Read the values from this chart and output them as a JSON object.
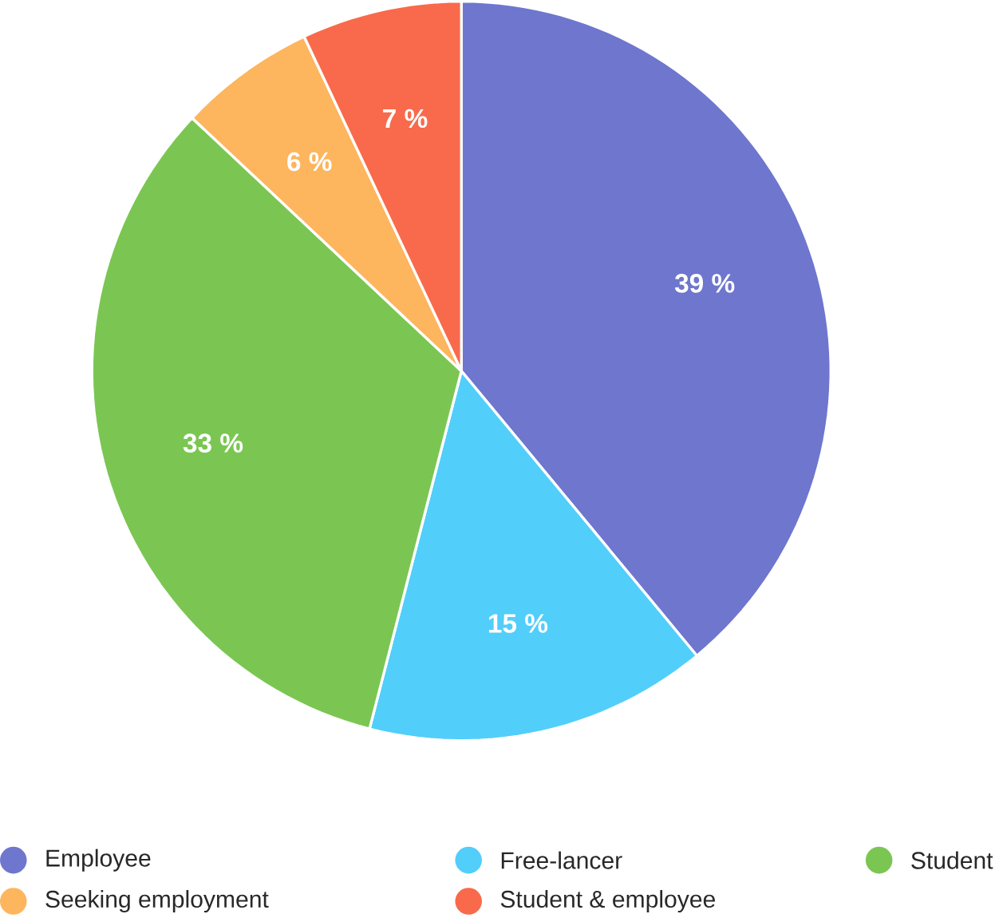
{
  "chart_data": {
    "type": "pie",
    "categories": [
      "Employee",
      "Free-lancer",
      "Student",
      "Seeking employment",
      "Student & employee"
    ],
    "values": [
      39,
      15,
      33,
      6,
      7
    ],
    "colors": [
      "#6e76cd",
      "#52cefa",
      "#7bc652",
      "#fdb55e",
      "#f86a4b"
    ],
    "value_labels": [
      "39 %",
      "15 %",
      "33 %",
      "6 %",
      "7 %"
    ],
    "legend": "bottom"
  }
}
